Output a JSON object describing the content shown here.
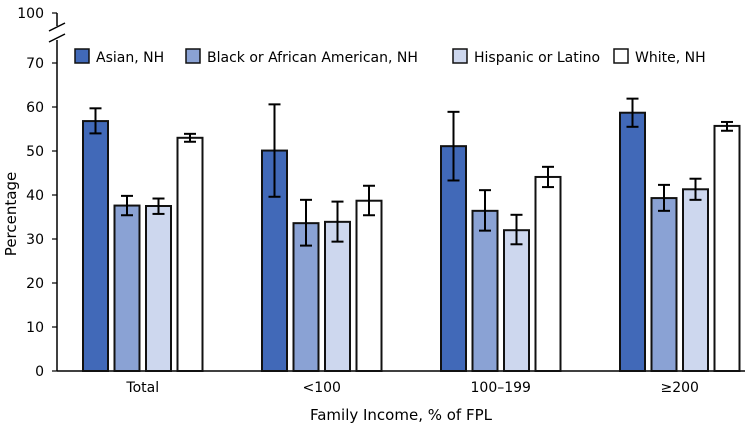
{
  "chart_data": {
    "type": "bar",
    "xlabel": "Family Income, % of FPL",
    "ylabel": "Percentage",
    "ylim": [
      0,
      100
    ],
    "axis_break": [
      70,
      100
    ],
    "yticks": [
      0,
      10,
      20,
      30,
      40,
      50,
      60,
      70,
      100
    ],
    "grid": false,
    "legend_position": "top",
    "categories": [
      "Total",
      "<100",
      "100–199",
      "≥200"
    ],
    "series": [
      {
        "name": "Asian, NH",
        "color": "#4169b8",
        "values": [
          56.8,
          50.1,
          51.1,
          58.7
        ],
        "ci_low": [
          54.0,
          39.6,
          43.3,
          55.5
        ],
        "ci_high": [
          59.7,
          60.6,
          58.9,
          61.9
        ]
      },
      {
        "name": "Black or African American, NH",
        "color": "#8aa2d4",
        "values": [
          37.6,
          33.6,
          36.4,
          39.3
        ],
        "ci_low": [
          35.4,
          28.5,
          31.9,
          36.4
        ],
        "ci_high": [
          39.8,
          38.9,
          41.1,
          42.3
        ]
      },
      {
        "name": "Hispanic or Latino",
        "color": "#cdd7ee",
        "values": [
          37.5,
          33.9,
          32.0,
          41.3
        ],
        "ci_low": [
          35.7,
          29.4,
          28.8,
          38.9
        ],
        "ci_high": [
          39.2,
          38.5,
          35.5,
          43.7
        ]
      },
      {
        "name": "White, NH",
        "color": "#ffffff",
        "values": [
          53.0,
          38.7,
          44.1,
          55.7
        ],
        "ci_low": [
          52.1,
          35.4,
          41.8,
          54.6
        ],
        "ci_high": [
          53.9,
          42.1,
          46.4,
          56.6
        ]
      }
    ]
  }
}
